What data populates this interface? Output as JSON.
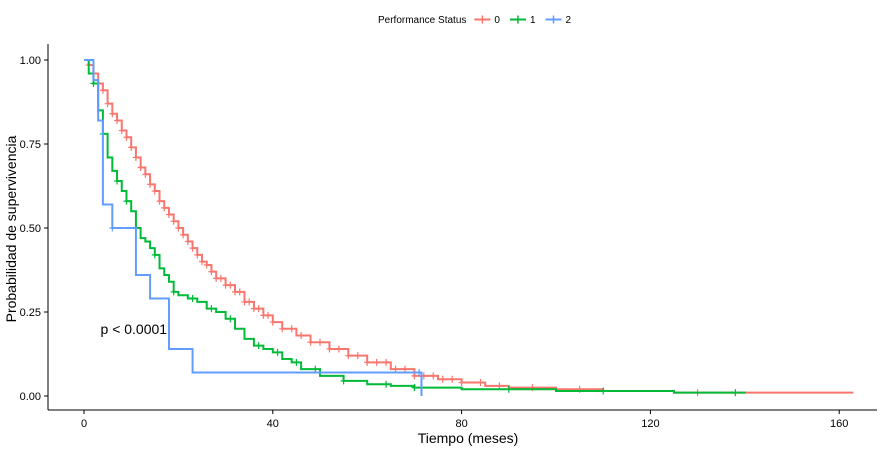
{
  "chart_data": {
    "type": "line",
    "subtype": "kaplan-meier step",
    "title": "",
    "xlabel": "Tiempo (meses)",
    "ylabel": "Probabilidad de supervivencia",
    "xlim": [
      0,
      165
    ],
    "ylim": [
      0,
      1.0
    ],
    "x_ticks": [
      0,
      40,
      80,
      120,
      160
    ],
    "x_tick_labels": [
      "0",
      "40",
      "80",
      "120",
      "160"
    ],
    "y_ticks": [
      0,
      0.25,
      0.5,
      0.75,
      1.0
    ],
    "y_tick_labels": [
      "0.00",
      "0.25",
      "0.50",
      "0.75",
      "1.00"
    ],
    "grid": false,
    "legend": {
      "title": "Performance Status",
      "position": "top",
      "entries": [
        "0",
        "1",
        "2"
      ]
    },
    "annotation": "p < 0.0001",
    "annotation_pos": {
      "x": 3.5,
      "y": 0.2
    },
    "series": [
      {
        "name": "0",
        "color": "#F8766D",
        "steps": [
          [
            0,
            1.0
          ],
          [
            1,
            0.985
          ],
          [
            2,
            0.96
          ],
          [
            3,
            0.93
          ],
          [
            4,
            0.91
          ],
          [
            5,
            0.87
          ],
          [
            6,
            0.84
          ],
          [
            7,
            0.82
          ],
          [
            8,
            0.79
          ],
          [
            9,
            0.77
          ],
          [
            10,
            0.74
          ],
          [
            11,
            0.71
          ],
          [
            12,
            0.68
          ],
          [
            13,
            0.66
          ],
          [
            14,
            0.63
          ],
          [
            15,
            0.61
          ],
          [
            16,
            0.58
          ],
          [
            17,
            0.56
          ],
          [
            18,
            0.54
          ],
          [
            19,
            0.52
          ],
          [
            20,
            0.5
          ],
          [
            21,
            0.48
          ],
          [
            22,
            0.46
          ],
          [
            23,
            0.44
          ],
          [
            24,
            0.42
          ],
          [
            25,
            0.4
          ],
          [
            26,
            0.39
          ],
          [
            27,
            0.37
          ],
          [
            28,
            0.35
          ],
          [
            30,
            0.33
          ],
          [
            32,
            0.31
          ],
          [
            34,
            0.28
          ],
          [
            36,
            0.26
          ],
          [
            38,
            0.24
          ],
          [
            40,
            0.22
          ],
          [
            42,
            0.2
          ],
          [
            45,
            0.18
          ],
          [
            48,
            0.16
          ],
          [
            52,
            0.14
          ],
          [
            56,
            0.12
          ],
          [
            60,
            0.1
          ],
          [
            65,
            0.08
          ],
          [
            70,
            0.06
          ],
          [
            75,
            0.05
          ],
          [
            80,
            0.04
          ],
          [
            85,
            0.03
          ],
          [
            90,
            0.025
          ],
          [
            100,
            0.02
          ],
          [
            110,
            0.015
          ],
          [
            125,
            0.01
          ],
          [
            163,
            0.01
          ]
        ],
        "censor_x": [
          1,
          4,
          5,
          6,
          7,
          8,
          9,
          10,
          11,
          12,
          13,
          14,
          15,
          16,
          17,
          18,
          19,
          20,
          21,
          22,
          23,
          24,
          25,
          26,
          27,
          28,
          29,
          30,
          31,
          32,
          33,
          34,
          35,
          36,
          37,
          38,
          39,
          40,
          42,
          44,
          46,
          48,
          50,
          52,
          54,
          56,
          58,
          60,
          62,
          64,
          66,
          68,
          70,
          72,
          74,
          76,
          78,
          80,
          84,
          88,
          95,
          105,
          130
        ]
      },
      {
        "name": "1",
        "color": "#00BA38",
        "steps": [
          [
            0,
            1.0
          ],
          [
            1,
            0.96
          ],
          [
            2,
            0.93
          ],
          [
            3,
            0.85
          ],
          [
            4,
            0.78
          ],
          [
            5,
            0.71
          ],
          [
            6,
            0.67
          ],
          [
            7,
            0.64
          ],
          [
            8,
            0.61
          ],
          [
            9,
            0.58
          ],
          [
            10,
            0.55
          ],
          [
            11,
            0.5
          ],
          [
            12,
            0.47
          ],
          [
            13,
            0.46
          ],
          [
            14,
            0.44
          ],
          [
            15,
            0.42
          ],
          [
            16,
            0.38
          ],
          [
            17,
            0.36
          ],
          [
            18,
            0.34
          ],
          [
            19,
            0.31
          ],
          [
            20,
            0.3
          ],
          [
            22,
            0.29
          ],
          [
            24,
            0.28
          ],
          [
            26,
            0.26
          ],
          [
            28,
            0.25
          ],
          [
            30,
            0.23
          ],
          [
            32,
            0.2
          ],
          [
            34,
            0.17
          ],
          [
            36,
            0.15
          ],
          [
            38,
            0.14
          ],
          [
            40,
            0.13
          ],
          [
            42,
            0.11
          ],
          [
            44,
            0.1
          ],
          [
            46,
            0.08
          ],
          [
            50,
            0.06
          ],
          [
            55,
            0.045
          ],
          [
            60,
            0.035
          ],
          [
            65,
            0.03
          ],
          [
            70,
            0.025
          ],
          [
            80,
            0.02
          ],
          [
            100,
            0.015
          ],
          [
            125,
            0.01
          ],
          [
            140,
            0.008
          ]
        ],
        "censor_x": [
          2,
          4,
          7,
          9,
          11,
          15,
          19,
          23,
          27,
          31,
          37,
          41,
          45,
          49,
          55,
          64,
          70,
          90,
          110,
          138
        ]
      },
      {
        "name": "2",
        "color": "#619CFF",
        "steps": [
          [
            0,
            1.0
          ],
          [
            2,
            0.94
          ],
          [
            3,
            0.82
          ],
          [
            4,
            0.57
          ],
          [
            6,
            0.5
          ],
          [
            11,
            0.36
          ],
          [
            14,
            0.29
          ],
          [
            18,
            0.14
          ],
          [
            23,
            0.07
          ],
          [
            71,
            0.07
          ],
          [
            71.5,
            0.0
          ]
        ],
        "censor_x": [
          6,
          71
        ]
      }
    ]
  }
}
